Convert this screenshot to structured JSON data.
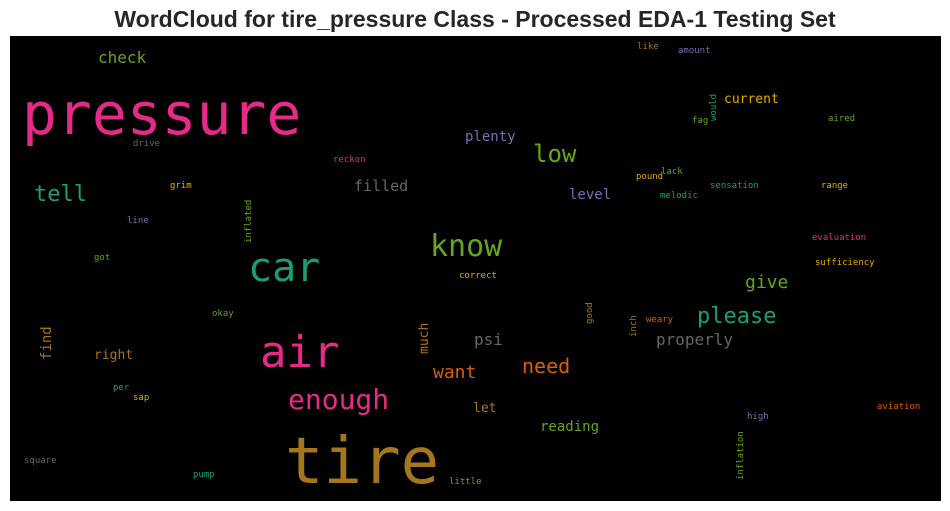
{
  "title": "WordCloud for tire_pressure Class - Processed EDA-1 Testing Set",
  "chart_data": {
    "type": "wordcloud",
    "background": "#000000",
    "words": [
      {
        "text": "pressure",
        "color": "#e7298a"
      },
      {
        "text": "tire",
        "color": "#a6761d"
      },
      {
        "text": "air",
        "color": "#e7298a"
      },
      {
        "text": "car",
        "color": "#1b9e77"
      },
      {
        "text": "know",
        "color": "#66a61e"
      },
      {
        "text": "low",
        "color": "#66a61e"
      },
      {
        "text": "enough",
        "color": "#e7298a"
      },
      {
        "text": "please",
        "color": "#1b9e77"
      },
      {
        "text": "tell",
        "color": "#1b9e77"
      },
      {
        "text": "need",
        "color": "#d95f02"
      },
      {
        "text": "want",
        "color": "#d95f02"
      },
      {
        "text": "give",
        "color": "#66a61e"
      },
      {
        "text": "properly",
        "color": "#666666"
      },
      {
        "text": "check",
        "color": "#66a61e"
      },
      {
        "text": "filled",
        "color": "#666666"
      },
      {
        "text": "psi",
        "color": "#666666"
      },
      {
        "text": "plenty",
        "color": "#7570b3"
      },
      {
        "text": "current",
        "color": "#e6ab02"
      },
      {
        "text": "level",
        "color": "#7570b3"
      },
      {
        "text": "reading",
        "color": "#66a61e"
      },
      {
        "text": "right",
        "color": "#a6761d"
      },
      {
        "text": "find",
        "color": "#a6761d"
      },
      {
        "text": "much",
        "color": "#a6761d"
      },
      {
        "text": "let",
        "color": "#a6761d"
      },
      {
        "text": "drive",
        "color": "#666666"
      },
      {
        "text": "reckon",
        "color": "#e7298a"
      },
      {
        "text": "inflated",
        "color": "#66a61e"
      },
      {
        "text": "grim",
        "color": "#e6ab02"
      },
      {
        "text": "line",
        "color": "#7570b3"
      },
      {
        "text": "got",
        "color": "#66a61e"
      },
      {
        "text": "okay",
        "color": "#66a61e"
      },
      {
        "text": "correct",
        "color": "#e6ab02"
      },
      {
        "text": "good",
        "color": "#a6761d"
      },
      {
        "text": "inch",
        "color": "#a6761d"
      },
      {
        "text": "weary",
        "color": "#d95f02"
      },
      {
        "text": "like",
        "color": "#a6761d"
      },
      {
        "text": "amount",
        "color": "#7570b3"
      },
      {
        "text": "would",
        "color": "#1b9e77"
      },
      {
        "text": "fag",
        "color": "#66a61e"
      },
      {
        "text": "aired",
        "color": "#66a61e"
      },
      {
        "text": "lack",
        "color": "#66a61e"
      },
      {
        "text": "pound",
        "color": "#e6ab02"
      },
      {
        "text": "melodic",
        "color": "#1b9e77"
      },
      {
        "text": "sensation",
        "color": "#1b9e77"
      },
      {
        "text": "range",
        "color": "#e6ab02"
      },
      {
        "text": "evaluation",
        "color": "#e7298a"
      },
      {
        "text": "sufficiency",
        "color": "#e6ab02"
      },
      {
        "text": "per",
        "color": "#1b9e77"
      },
      {
        "text": "sap",
        "color": "#e6ab02"
      },
      {
        "text": "square",
        "color": "#666666"
      },
      {
        "text": "pump",
        "color": "#1b9e77"
      },
      {
        "text": "little",
        "color": "#66a61e"
      },
      {
        "text": "inflation",
        "color": "#66a61e"
      },
      {
        "text": "high",
        "color": "#7570b3"
      },
      {
        "text": "aviation",
        "color": "#d95f02"
      }
    ]
  }
}
